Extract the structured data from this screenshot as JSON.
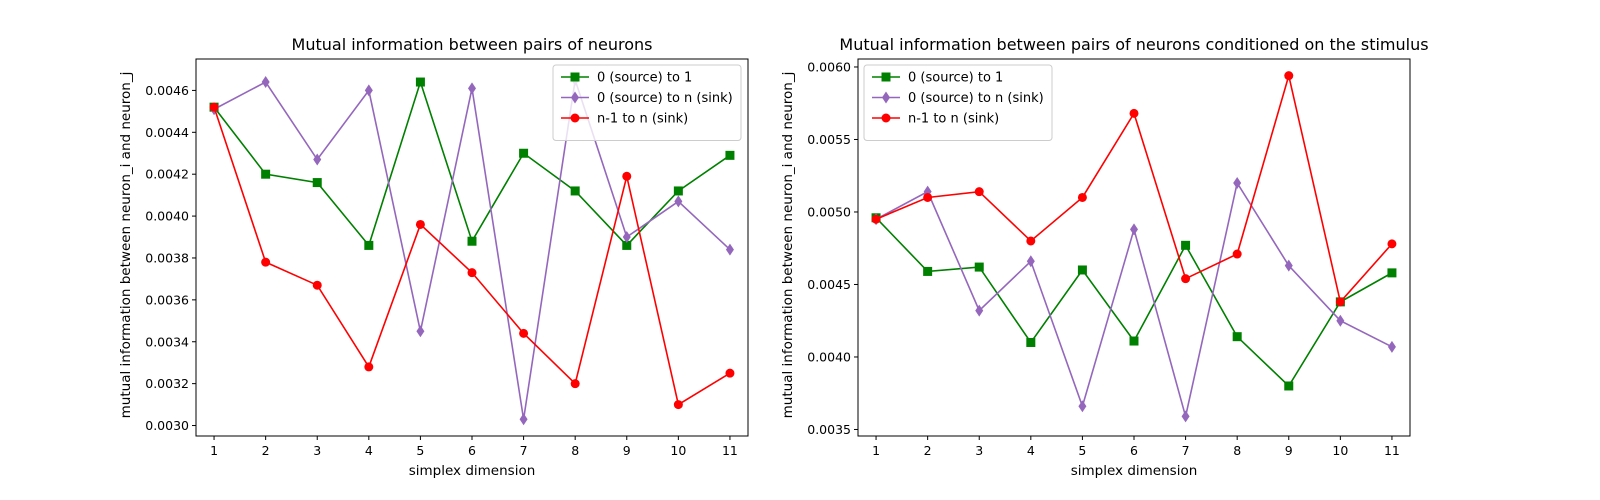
{
  "chart_data": [
    {
      "type": "line",
      "title": "Mutual information between pairs of neurons",
      "xlabel": "simplex dimension",
      "ylabel": "mutual information between neuron_i and neuron_j",
      "xlim": [
        0.65,
        11.35
      ],
      "ylim": [
        0.00295,
        0.00475
      ],
      "x_ticks": [
        1,
        2,
        3,
        4,
        5,
        6,
        7,
        8,
        9,
        10,
        11
      ],
      "y_ticks": [
        0.003,
        0.0032,
        0.0034,
        0.0036,
        0.0038,
        0.004,
        0.0042,
        0.0044,
        0.0046
      ],
      "y_tick_labels": [
        "0.0030",
        "0.0032",
        "0.0034",
        "0.0036",
        "0.0038",
        "0.0040",
        "0.0042",
        "0.0044",
        "0.0046"
      ],
      "grid": false,
      "legend_position": "upper right",
      "x": [
        1,
        2,
        3,
        4,
        5,
        6,
        7,
        8,
        9,
        10,
        11
      ],
      "series": [
        {
          "name": "0 (source) to 1",
          "color": "#008000",
          "marker": "square",
          "values": [
            0.00452,
            0.0042,
            0.00416,
            0.00386,
            0.00464,
            0.00388,
            0.0043,
            0.00412,
            0.00386,
            0.00412,
            0.00429
          ]
        },
        {
          "name": "0 (source) to n (sink)",
          "color": "#9467bd",
          "marker": "diamond",
          "values": [
            0.00451,
            0.00464,
            0.00427,
            0.0046,
            0.00345,
            0.00461,
            0.00303,
            0.00465,
            0.0039,
            0.00407,
            0.00384
          ]
        },
        {
          "name": "n-1 to n (sink)",
          "color": "#ff0000",
          "marker": "circle",
          "values": [
            0.00452,
            0.00378,
            0.00367,
            0.00328,
            0.00396,
            0.00373,
            0.00344,
            0.0032,
            0.00419,
            0.0031,
            0.00325
          ]
        }
      ]
    },
    {
      "type": "line",
      "title": "Mutual information between pairs of neurons conditioned on the stimulus",
      "xlabel": "simplex dimension",
      "ylabel": "mutual information between neuron_i and neuron_j",
      "xlim": [
        0.65,
        11.35
      ],
      "ylim": [
        0.003455,
        0.006055
      ],
      "x_ticks": [
        1,
        2,
        3,
        4,
        5,
        6,
        7,
        8,
        9,
        10,
        11
      ],
      "y_ticks": [
        0.0035,
        0.004,
        0.0045,
        0.005,
        0.0055,
        0.006
      ],
      "y_tick_labels": [
        "0.0035",
        "0.0040",
        "0.0045",
        "0.0050",
        "0.0055",
        "0.0060"
      ],
      "grid": false,
      "legend_position": "upper left",
      "x": [
        1,
        2,
        3,
        4,
        5,
        6,
        7,
        8,
        9,
        10,
        11
      ],
      "series": [
        {
          "name": "0 (source) to 1",
          "color": "#008000",
          "marker": "square",
          "values": [
            0.00496,
            0.00459,
            0.00462,
            0.0041,
            0.0046,
            0.00411,
            0.00477,
            0.00414,
            0.0038,
            0.00438,
            0.00458
          ]
        },
        {
          "name": "0 (source) to n (sink)",
          "color": "#9467bd",
          "marker": "diamond",
          "values": [
            0.00495,
            0.00514,
            0.00432,
            0.00466,
            0.00366,
            0.00488,
            0.00359,
            0.0052,
            0.00463,
            0.00425,
            0.00407
          ]
        },
        {
          "name": "n-1 to n (sink)",
          "color": "#ff0000",
          "marker": "circle",
          "values": [
            0.00495,
            0.0051,
            0.00514,
            0.0048,
            0.0051,
            0.00568,
            0.00454,
            0.00471,
            0.00594,
            0.00438,
            0.00478
          ]
        }
      ]
    }
  ]
}
